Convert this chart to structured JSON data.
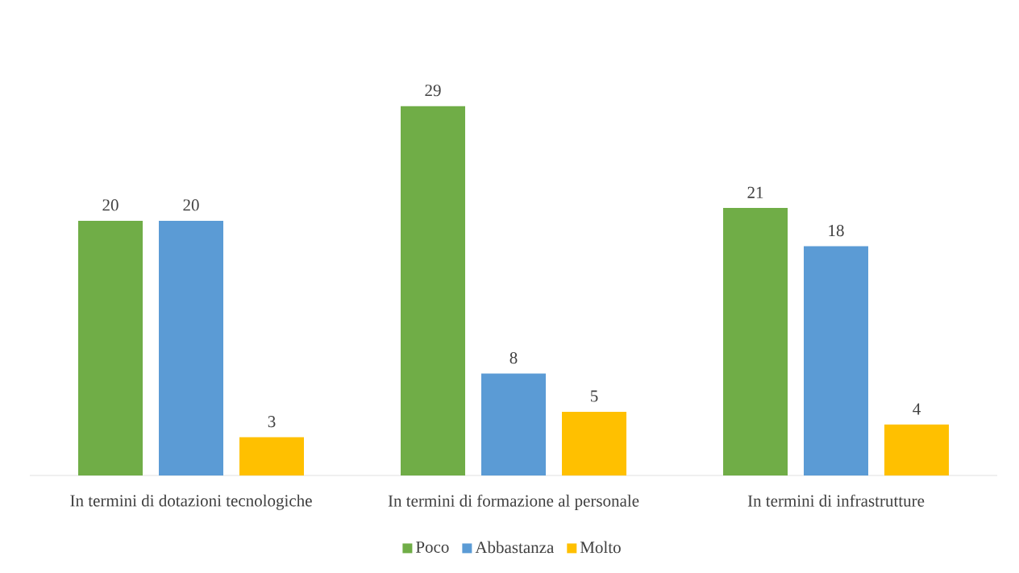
{
  "chart_data": {
    "type": "bar",
    "categories": [
      "In termini di dotazioni tecnologiche",
      "In termini di formazione al personale",
      "In termini di infrastrutture"
    ],
    "series": [
      {
        "name": "Poco",
        "color": "#70ad47",
        "values": [
          20,
          29,
          21
        ]
      },
      {
        "name": "Abbastanza",
        "color": "#5b9bd5",
        "values": [
          20,
          8,
          18
        ]
      },
      {
        "name": "Molto",
        "color": "#ffc000",
        "values": [
          3,
          5,
          4
        ]
      }
    ],
    "data_labels": true,
    "legend": "bottom"
  }
}
